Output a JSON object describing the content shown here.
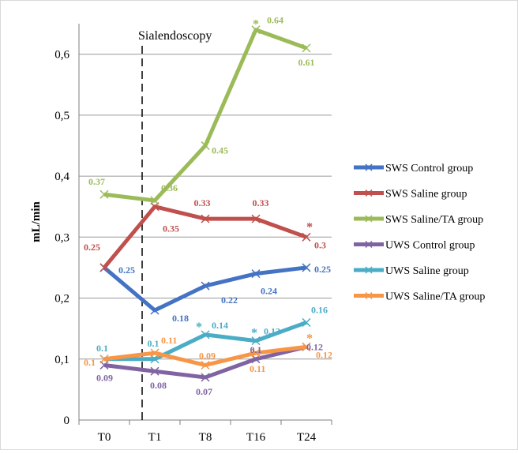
{
  "chart_data": {
    "type": "line",
    "title": "",
    "xlabel": "",
    "ylabel": "mL/min",
    "categories": [
      "T0",
      "T1",
      "T8",
      "T16",
      "T24"
    ],
    "ylim": [
      0,
      0.65
    ],
    "yticks": [
      "0",
      "0,1",
      "0,2",
      "0,3",
      "0,4",
      "0,5",
      "0,6"
    ],
    "grid": "horizontal",
    "legend_position": "right",
    "annotation": {
      "text": "Sialendoscopy",
      "at_category": "T1",
      "style": "dashed vertical line"
    },
    "series": [
      {
        "name": "SWS Control group",
        "color": "#4472c4",
        "values": [
          0.25,
          0.18,
          0.22,
          0.24,
          0.25
        ],
        "labels": [
          "0.25",
          "0.18",
          "0.22",
          "0.24",
          "0.25"
        ],
        "stars": []
      },
      {
        "name": "SWS Saline group",
        "color": "#c0504d",
        "values": [
          0.25,
          0.35,
          0.33,
          0.33,
          0.3
        ],
        "labels": [
          "0.25",
          "0.35",
          "0.33",
          "0.33",
          "0.3"
        ],
        "stars": [
          "T24"
        ]
      },
      {
        "name": "SWS Saline/TA group",
        "color": "#9bbb59",
        "values": [
          0.37,
          0.36,
          0.45,
          0.64,
          0.61
        ],
        "labels": [
          "0.37",
          "0.36",
          "0.45",
          "0.64",
          "0.61"
        ],
        "stars": [
          "T16"
        ]
      },
      {
        "name": "UWS Control group",
        "color": "#8064a2",
        "values": [
          0.09,
          0.08,
          0.07,
          0.1,
          0.12
        ],
        "labels": [
          "0.09",
          "0.08",
          "0.07",
          "0.1",
          "0.12"
        ],
        "stars": []
      },
      {
        "name": "UWS Saline group",
        "color": "#4bacc6",
        "values": [
          0.1,
          0.1,
          0.14,
          0.13,
          0.16
        ],
        "labels": [
          "0.1",
          "0.1",
          "0.14",
          "0.13",
          "0.16"
        ],
        "stars": [
          "T8",
          "T16"
        ]
      },
      {
        "name": "UWS Saline/TA group",
        "color": "#f79646",
        "values": [
          0.1,
          0.11,
          0.09,
          0.11,
          0.12
        ],
        "labels": [
          "0.1",
          "0.11",
          "0.09",
          "0.11",
          "0.12"
        ],
        "stars": [
          "T24"
        ]
      }
    ]
  }
}
